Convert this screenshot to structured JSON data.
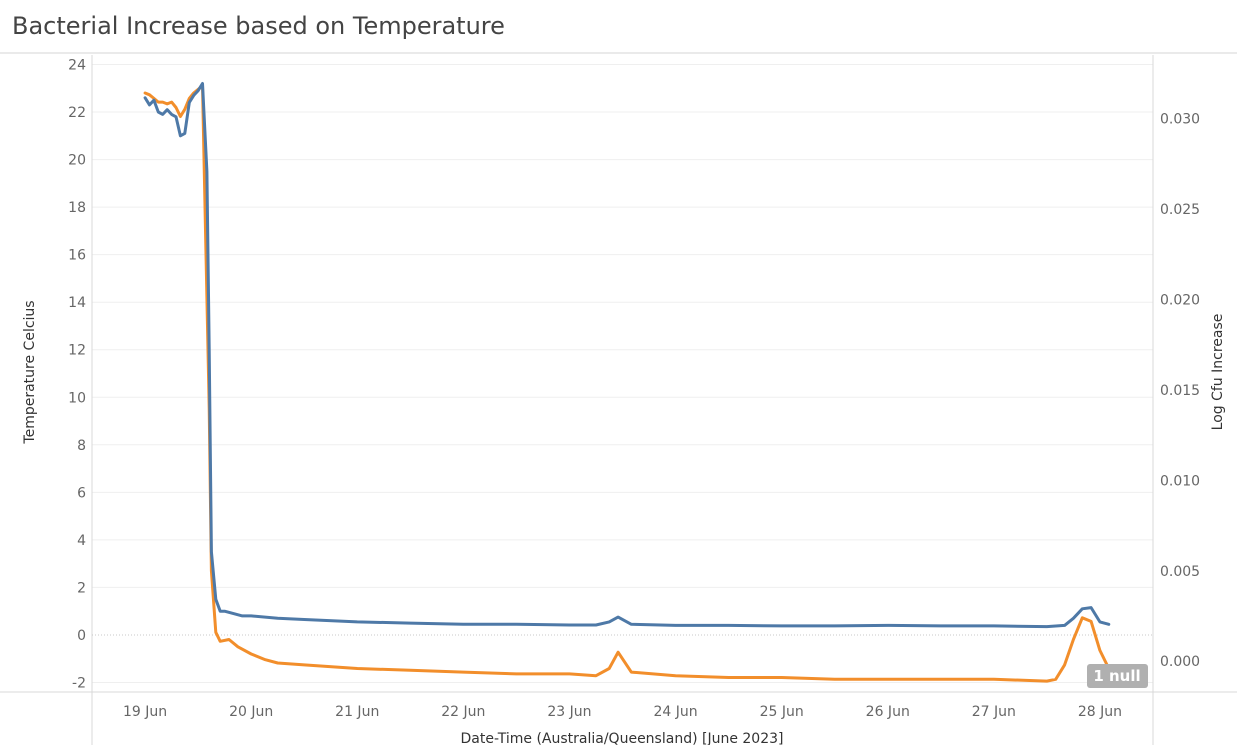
{
  "chart_data": {
    "type": "line",
    "title": "Bacterial Increase based on Temperature",
    "xlabel": "Date-Time (Australia/Queensland) [June 2023]",
    "ylabel": "Temperature Celcius",
    "y2label": "Log Cfu Increase",
    "x_ticks": [
      "19 Jun",
      "20 Jun",
      "21 Jun",
      "22 Jun",
      "23 Jun",
      "24 Jun",
      "25 Jun",
      "26 Jun",
      "27 Jun",
      "28 Jun"
    ],
    "y_ticks": [
      "24",
      "22",
      "20",
      "18",
      "16",
      "14",
      "12",
      "10",
      "8",
      "6",
      "4",
      "2",
      "0",
      "-2"
    ],
    "y2_ticks": [
      "0.030",
      "0.025",
      "0.020",
      "0.015",
      "0.010",
      "0.005",
      "0.000"
    ],
    "ylim": [
      -2.4,
      24.4
    ],
    "y2lim": [
      -0.0017,
      0.0335
    ],
    "xlim": [
      "2023-06-18 12:00",
      "2023-06-28 12:00"
    ],
    "grid": true,
    "null_indicator": "1 null",
    "colors": {
      "temperature": "#4e79a7",
      "log_cfu": "#f28e2b"
    },
    "series": [
      {
        "axis": "left",
        "color": "#4e79a7",
        "x": [
          "2023-06-19 00:00",
          "2023-06-19 01:00",
          "2023-06-19 02:00",
          "2023-06-19 03:00",
          "2023-06-19 04:00",
          "2023-06-19 05:00",
          "2023-06-19 06:00",
          "2023-06-19 07:00",
          "2023-06-19 08:00",
          "2023-06-19 09:00",
          "2023-06-19 10:00",
          "2023-06-19 11:00",
          "2023-06-19 12:00",
          "2023-06-19 13:00",
          "2023-06-19 14:00",
          "2023-06-19 14:30",
          "2023-06-19 15:00",
          "2023-06-19 16:00",
          "2023-06-19 17:00",
          "2023-06-19 18:00",
          "2023-06-19 20:00",
          "2023-06-19 22:00",
          "2023-06-20 00:00",
          "2023-06-20 06:00",
          "2023-06-20 12:00",
          "2023-06-21 00:00",
          "2023-06-21 12:00",
          "2023-06-22 00:00",
          "2023-06-22 12:00",
          "2023-06-23 00:00",
          "2023-06-23 06:00",
          "2023-06-23 09:00",
          "2023-06-23 11:00",
          "2023-06-23 14:00",
          "2023-06-24 00:00",
          "2023-06-24 12:00",
          "2023-06-25 00:00",
          "2023-06-25 12:00",
          "2023-06-26 00:00",
          "2023-06-26 12:00",
          "2023-06-27 00:00",
          "2023-06-27 12:00",
          "2023-06-27 16:00",
          "2023-06-27 18:00",
          "2023-06-27 20:00",
          "2023-06-27 22:00",
          "2023-06-28 00:00",
          "2023-06-28 02:00"
        ],
        "values": [
          22.6,
          22.3,
          22.5,
          22.0,
          21.9,
          22.1,
          21.9,
          21.8,
          21.0,
          21.1,
          22.4,
          22.7,
          22.9,
          23.2,
          19.5,
          12.0,
          3.5,
          1.5,
          1.0,
          1.0,
          0.9,
          0.8,
          0.8,
          0.7,
          0.65,
          0.55,
          0.5,
          0.45,
          0.45,
          0.42,
          0.42,
          0.55,
          0.75,
          0.45,
          0.4,
          0.4,
          0.38,
          0.38,
          0.4,
          0.38,
          0.38,
          0.35,
          0.4,
          0.7,
          1.1,
          1.15,
          0.55,
          0.45
        ]
      },
      {
        "axis": "right",
        "color": "#f28e2b",
        "x": [
          "2023-06-19 00:00",
          "2023-06-19 01:00",
          "2023-06-19 02:00",
          "2023-06-19 03:00",
          "2023-06-19 04:00",
          "2023-06-19 05:00",
          "2023-06-19 06:00",
          "2023-06-19 07:00",
          "2023-06-19 08:00",
          "2023-06-19 09:00",
          "2023-06-19 10:00",
          "2023-06-19 11:00",
          "2023-06-19 12:00",
          "2023-06-19 13:00",
          "2023-06-19 14:30",
          "2023-06-19 15:00",
          "2023-06-19 16:00",
          "2023-06-19 17:00",
          "2023-06-19 19:00",
          "2023-06-19 21:00",
          "2023-06-20 00:00",
          "2023-06-20 03:00",
          "2023-06-20 06:00",
          "2023-06-20 12:00",
          "2023-06-21 00:00",
          "2023-06-21 12:00",
          "2023-06-22 00:00",
          "2023-06-22 12:00",
          "2023-06-23 00:00",
          "2023-06-23 06:00",
          "2023-06-23 09:00",
          "2023-06-23 11:00",
          "2023-06-23 14:00",
          "2023-06-24 00:00",
          "2023-06-24 12:00",
          "2023-06-25 00:00",
          "2023-06-25 12:00",
          "2023-06-26 00:00",
          "2023-06-26 12:00",
          "2023-06-27 00:00",
          "2023-06-27 12:00",
          "2023-06-27 14:00",
          "2023-06-27 16:00",
          "2023-06-27 18:00",
          "2023-06-27 20:00",
          "2023-06-27 22:00",
          "2023-06-28 00:00",
          "2023-06-28 02:00",
          "2023-06-28 04:00"
        ],
        "values": [
          0.0314,
          0.0313,
          0.0311,
          0.0309,
          0.0309,
          0.0308,
          0.0309,
          0.0306,
          0.0301,
          0.0305,
          0.0311,
          0.0314,
          0.0316,
          0.0318,
          0.014,
          0.005,
          0.0016,
          0.0011,
          0.0012,
          0.0008,
          0.0004,
          0.0001,
          -0.0001,
          -0.0002,
          -0.0004,
          -0.0005,
          -0.0006,
          -0.0007,
          -0.0007,
          -0.0008,
          -0.0004,
          0.0005,
          -0.0006,
          -0.0008,
          -0.0009,
          -0.0009,
          -0.001,
          -0.001,
          -0.001,
          -0.001,
          -0.0011,
          -0.001,
          -0.0002,
          0.0012,
          0.0024,
          0.0022,
          0.0006,
          -0.0004,
          -0.0009
        ]
      }
    ]
  }
}
